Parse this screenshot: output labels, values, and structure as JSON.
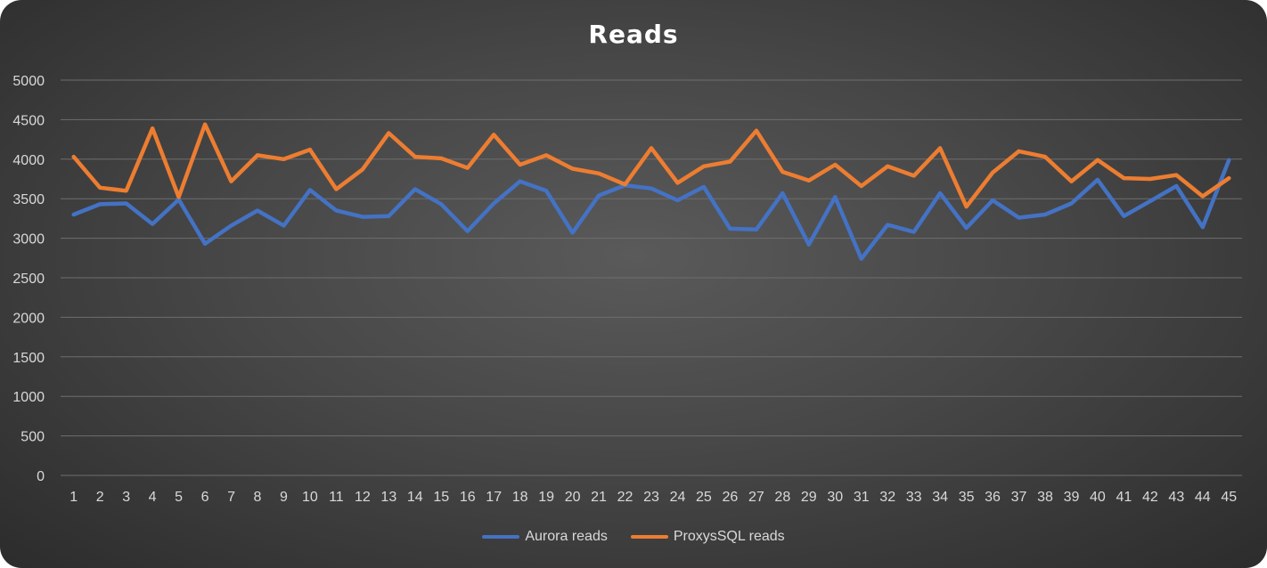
{
  "chart_data": {
    "type": "line",
    "title": "Reads",
    "xlabel": "",
    "ylabel": "",
    "ylim": [
      0,
      5000
    ],
    "yticks": [
      0,
      500,
      1000,
      1500,
      2000,
      2500,
      3000,
      3500,
      4000,
      4500,
      5000
    ],
    "categories": [
      "1",
      "2",
      "3",
      "4",
      "5",
      "6",
      "7",
      "8",
      "9",
      "10",
      "11",
      "12",
      "13",
      "14",
      "15",
      "16",
      "17",
      "18",
      "19",
      "20",
      "21",
      "22",
      "23",
      "24",
      "25",
      "26",
      "27",
      "28",
      "29",
      "30",
      "31",
      "32",
      "33",
      "34",
      "35",
      "36",
      "37",
      "38",
      "39",
      "40",
      "41",
      "42",
      "43",
      "44",
      "45"
    ],
    "grid": true,
    "legend_position": "bottom",
    "series": [
      {
        "name": "Aurora reads",
        "color": "#4472c4",
        "values": [
          3300,
          3430,
          3440,
          3180,
          3490,
          2930,
          3160,
          3350,
          3160,
          3610,
          3350,
          3270,
          3280,
          3620,
          3430,
          3090,
          3440,
          3720,
          3600,
          3070,
          3540,
          3670,
          3630,
          3480,
          3650,
          3120,
          3110,
          3570,
          2920,
          3520,
          2740,
          3170,
          3080,
          3570,
          3130,
          3480,
          3260,
          3300,
          3440,
          3740,
          3280,
          3470,
          3660,
          3140,
          3990
        ]
      },
      {
        "name": "ProxysSQL reads",
        "color": "#ed7d31",
        "values": [
          4030,
          3640,
          3600,
          4390,
          3520,
          4440,
          3720,
          4050,
          4000,
          4120,
          3620,
          3870,
          4330,
          4030,
          4010,
          3890,
          4310,
          3930,
          4050,
          3880,
          3820,
          3680,
          4140,
          3700,
          3910,
          3970,
          4360,
          3840,
          3730,
          3930,
          3660,
          3910,
          3790,
          4140,
          3400,
          3830,
          4100,
          4030,
          3720,
          3990,
          3760,
          3750,
          3800,
          3530,
          3760
        ]
      }
    ]
  }
}
